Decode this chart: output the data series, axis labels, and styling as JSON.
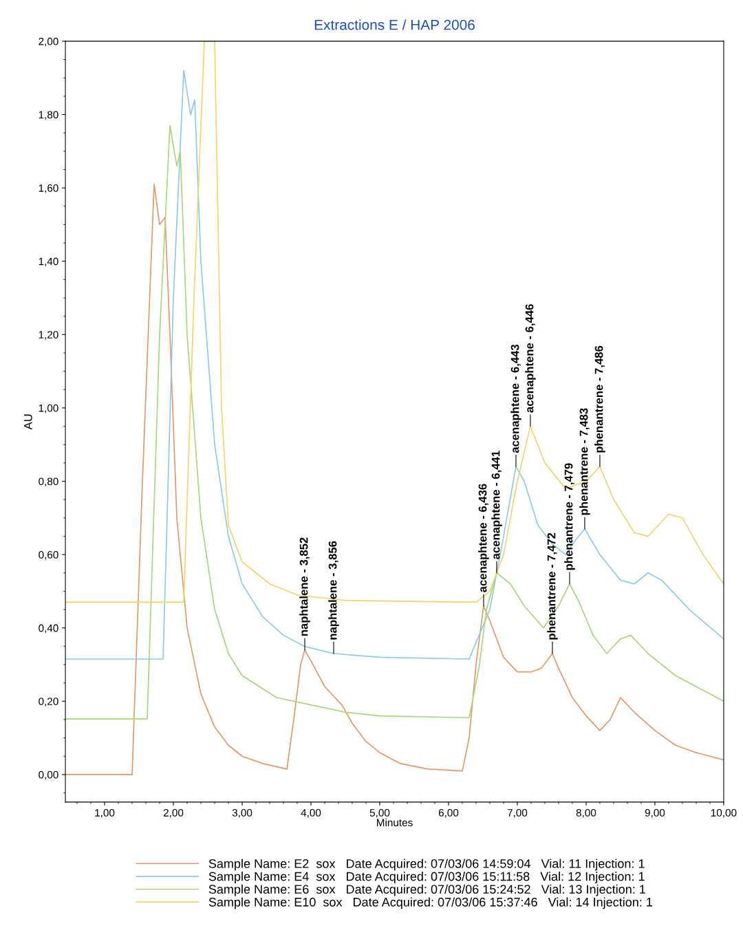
{
  "chart_data": {
    "type": "line",
    "title": "Extractions E / HAP 2006",
    "xlabel": "Minutes",
    "ylabel": "AU",
    "xlim": [
      0.43,
      10.0
    ],
    "ylim": [
      -0.075,
      2.0
    ],
    "xticks": [
      {
        "value": 1,
        "label": "1,00"
      },
      {
        "value": 2,
        "label": "2,00"
      },
      {
        "value": 3,
        "label": "3,00"
      },
      {
        "value": 4,
        "label": "4,00"
      },
      {
        "value": 5,
        "label": "5,00"
      },
      {
        "value": 6,
        "label": "6,00"
      },
      {
        "value": 7,
        "label": "7,00"
      },
      {
        "value": 8,
        "label": "8,00"
      },
      {
        "value": 9,
        "label": "9,00"
      },
      {
        "value": 10,
        "label": "10,00"
      }
    ],
    "yticks": [
      {
        "value": 0,
        "label": "0,00"
      },
      {
        "value": 0.2,
        "label": "0,20"
      },
      {
        "value": 0.4,
        "label": "0,40"
      },
      {
        "value": 0.6,
        "label": "0,60"
      },
      {
        "value": 0.8,
        "label": "0,80"
      },
      {
        "value": 1.0,
        "label": "1,00"
      },
      {
        "value": 1.2,
        "label": "1,20"
      },
      {
        "value": 1.4,
        "label": "1,40"
      },
      {
        "value": 1.6,
        "label": "1,60"
      },
      {
        "value": 1.8,
        "label": "1,80"
      },
      {
        "value": 2.0,
        "label": "2,00"
      }
    ],
    "grid": false,
    "legend": "bottom",
    "marker": "none",
    "line_style": "solid",
    "series": [
      {
        "name": "Sample Name: E2  sox   Date Acquired: 07/03/06 14:59:04   Vial: 11 Injection: 1",
        "color": "#e8956a",
        "x": [
          0.43,
          1.4,
          1.55,
          1.72,
          1.8,
          1.88,
          1.95,
          2.05,
          2.2,
          2.4,
          2.6,
          2.8,
          3.0,
          3.3,
          3.65,
          3.75,
          3.85,
          3.91,
          4.0,
          4.2,
          4.35,
          4.45,
          4.6,
          4.8,
          5.0,
          5.3,
          5.7,
          6.2,
          6.3,
          6.4,
          6.51,
          6.6,
          6.8,
          7.0,
          7.2,
          7.35,
          7.51,
          7.6,
          7.8,
          8.0,
          8.2,
          8.35,
          8.5,
          8.7,
          9.0,
          9.3,
          9.6,
          10.0
        ],
        "values": [
          0,
          0,
          0.8,
          1.61,
          1.5,
          1.52,
          1.2,
          0.7,
          0.4,
          0.22,
          0.13,
          0.08,
          0.05,
          0.03,
          0.015,
          0.15,
          0.3,
          0.34,
          0.31,
          0.24,
          0.21,
          0.19,
          0.14,
          0.09,
          0.06,
          0.03,
          0.015,
          0.01,
          0.1,
          0.3,
          0.46,
          0.42,
          0.32,
          0.28,
          0.28,
          0.29,
          0.33,
          0.29,
          0.21,
          0.16,
          0.12,
          0.15,
          0.21,
          0.17,
          0.12,
          0.08,
          0.06,
          0.04
        ]
      },
      {
        "name": "Sample Name: E4  sox   Date Acquired: 07/03/06 15:11:58   Vial: 12 Injection: 1",
        "color": "#8ccbe8",
        "x": [
          0.43,
          1.85,
          2.0,
          2.15,
          2.25,
          2.31,
          2.4,
          2.6,
          2.8,
          3.0,
          3.3,
          3.6,
          3.9,
          4.33,
          5.0,
          6.3,
          6.6,
          6.8,
          6.98,
          7.1,
          7.3,
          7.5,
          7.7,
          7.85,
          7.98,
          8.2,
          8.5,
          8.7,
          8.9,
          9.1,
          9.5,
          10.0
        ],
        "values": [
          0.315,
          0.315,
          1.3,
          1.92,
          1.8,
          1.84,
          1.4,
          0.9,
          0.65,
          0.52,
          0.43,
          0.38,
          0.35,
          0.33,
          0.32,
          0.315,
          0.45,
          0.65,
          0.84,
          0.8,
          0.68,
          0.63,
          0.6,
          0.64,
          0.67,
          0.6,
          0.53,
          0.52,
          0.55,
          0.53,
          0.45,
          0.37
        ]
      },
      {
        "name": "Sample Name: E6  sox   Date Acquired: 07/03/06 15:24:52   Vial: 13 Injection: 1",
        "color": "#a9d67a",
        "x": [
          0.43,
          1.62,
          1.8,
          1.95,
          2.05,
          2.1,
          2.2,
          2.4,
          2.6,
          2.8,
          3.0,
          3.5,
          4.0,
          4.5,
          5.0,
          6.3,
          6.45,
          6.55,
          6.7,
          6.9,
          7.1,
          7.38,
          7.6,
          7.76,
          7.9,
          8.1,
          8.3,
          8.5,
          8.65,
          8.9,
          9.3,
          9.7,
          10.0
        ],
        "values": [
          0.152,
          0.152,
          1.2,
          1.77,
          1.66,
          1.7,
          1.2,
          0.7,
          0.45,
          0.33,
          0.27,
          0.21,
          0.19,
          0.17,
          0.16,
          0.155,
          0.3,
          0.45,
          0.55,
          0.52,
          0.46,
          0.4,
          0.46,
          0.52,
          0.47,
          0.38,
          0.33,
          0.37,
          0.38,
          0.33,
          0.27,
          0.23,
          0.2
        ]
      },
      {
        "name": "Sample Name: E10  sox   Date Acquired: 07/03/06 15:37:46   Vial: 14 Injection: 1",
        "color": "#f3d36a",
        "x": [
          0.43,
          2.15,
          2.3,
          2.45,
          2.6,
          2.7,
          2.8,
          3.0,
          3.4,
          3.8,
          4.5,
          6.4,
          6.6,
          6.8,
          7.0,
          7.19,
          7.4,
          7.7,
          8.0,
          8.2,
          8.4,
          8.7,
          8.9,
          9.2,
          9.4,
          9.7,
          10.0
        ],
        "values": [
          0.47,
          0.47,
          1.3,
          2.0,
          2.0,
          1.0,
          0.68,
          0.58,
          0.52,
          0.49,
          0.475,
          0.47,
          0.5,
          0.6,
          0.8,
          0.95,
          0.85,
          0.78,
          0.8,
          0.84,
          0.75,
          0.66,
          0.65,
          0.71,
          0.7,
          0.6,
          0.52
        ]
      }
    ],
    "annotations": [
      {
        "text": "naphtalene - 3,852",
        "x": 3.91,
        "y": 0.34
      },
      {
        "text": "naphtalene - 3,856",
        "x": 4.33,
        "y": 0.33
      },
      {
        "text": "acenaphtene - 6,436",
        "x": 6.51,
        "y": 0.46
      },
      {
        "text": "acenaphtene - 6,441",
        "x": 6.7,
        "y": 0.55
      },
      {
        "text": "acenaphtene - 6,443",
        "x": 6.98,
        "y": 0.84
      },
      {
        "text": "acenaphtene - 6,446",
        "x": 7.19,
        "y": 0.95
      },
      {
        "text": "phenantrene - 7,472",
        "x": 7.51,
        "y": 0.33
      },
      {
        "text": "phenantrene - 7,479",
        "x": 7.76,
        "y": 0.52
      },
      {
        "text": "phenantrene - 7,483",
        "x": 7.98,
        "y": 0.67
      },
      {
        "text": "phenantrene - 7,486",
        "x": 8.2,
        "y": 0.84
      }
    ]
  }
}
